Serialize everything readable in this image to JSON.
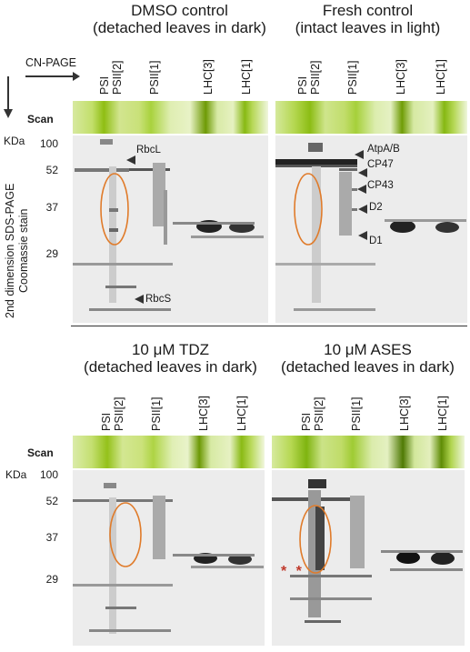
{
  "panels": [
    {
      "title_line1": "DMSO control",
      "title_line2": "(detached leaves in dark)"
    },
    {
      "title_line1": "Fresh control",
      "title_line2": "(intact leaves in light)"
    },
    {
      "title_line1": "10 μM TDZ",
      "title_line2": "(detached leaves in dark)"
    },
    {
      "title_line1": "10 μM ASES",
      "title_line2": "(detached leaves in dark)"
    }
  ],
  "lanes": [
    "PSI",
    "PSII[2]",
    "PSII[1]",
    "LHC[3]",
    "LHC[1]"
  ],
  "axis": {
    "cn_page": "CN-PAGE",
    "scan": "Scan",
    "kda": "KDa",
    "sds_line1": "2nd dimension  SDS-PAGE",
    "sds_line2": "Coomassie stain"
  },
  "mw_markers": [
    "100",
    "52",
    "37",
    "29"
  ],
  "annotations": {
    "rbcl": "RbcL",
    "rbcs": "RbcS",
    "atpab": "AtpA/B",
    "cp47": "CP47",
    "cp43": "CP43",
    "d2": "D2",
    "d1": "D1",
    "stars": "* *"
  },
  "colors": {
    "ellipse": "#e07b2a",
    "strip_green": "#9cc81a",
    "strip_dark": "#5b7d06",
    "stars": "#c0392b"
  }
}
